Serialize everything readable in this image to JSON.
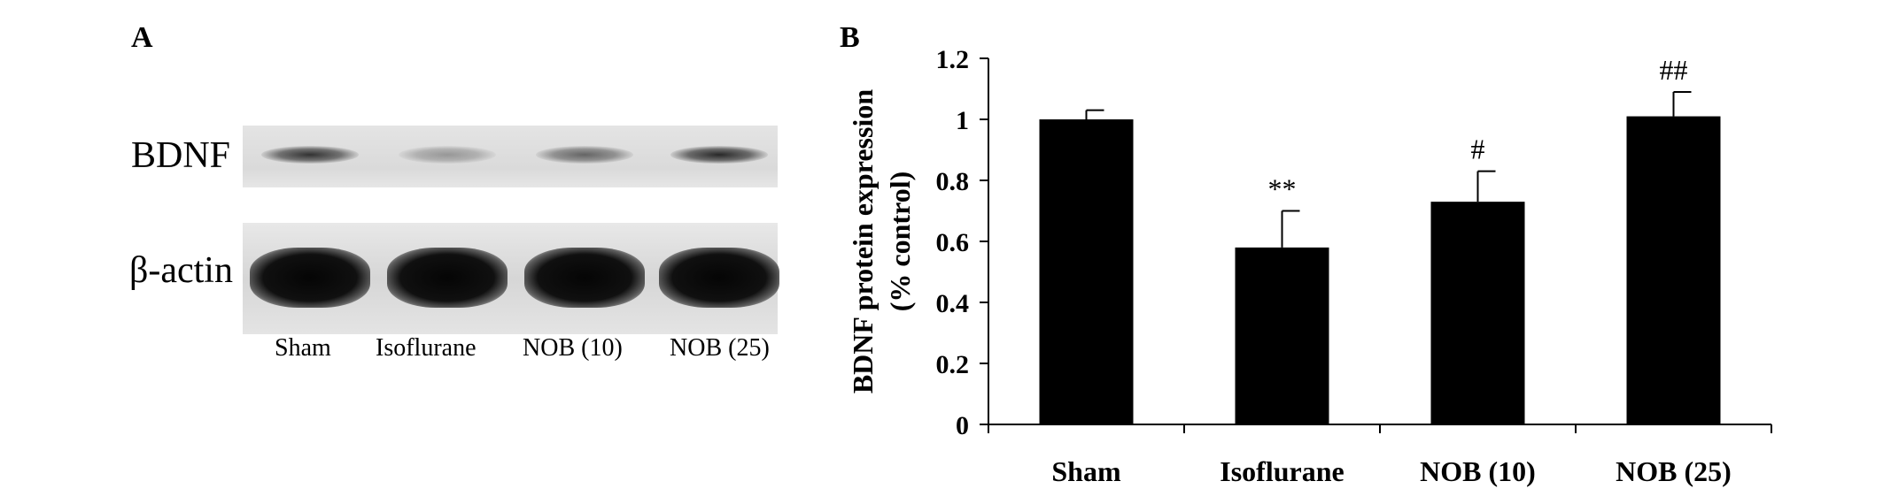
{
  "panel_a": {
    "label": "A",
    "row_labels": [
      "BDNF",
      "β-actin"
    ],
    "lanes": [
      "Sham",
      "Isoflurane",
      "NOB (10)",
      "NOB (25)"
    ],
    "bdnf_band_intensity": [
      0.85,
      0.35,
      0.6,
      0.9
    ],
    "actin_band_intensity": [
      1.0,
      1.0,
      1.0,
      1.0
    ]
  },
  "panel_b": {
    "label": "B"
  },
  "chart_data": {
    "type": "bar",
    "categories": [
      "Sham",
      "Isoflurane",
      "NOB (10)",
      "NOB (25)"
    ],
    "series": [
      {
        "values": [
          1.0,
          0.58,
          0.73,
          1.01
        ],
        "errors": [
          0.03,
          0.12,
          0.1,
          0.08
        ]
      }
    ],
    "annotations": [
      "",
      "**",
      "#",
      "##"
    ],
    "ylabel_line1": "BDNF protein expression",
    "ylabel_line2": "(% control)",
    "xlabel": "",
    "ylim": [
      0,
      1.2
    ],
    "yticks": [
      0,
      0.2,
      0.4,
      0.6,
      0.8,
      1,
      1.2
    ],
    "ytick_labels": [
      "0",
      "0.2",
      "0.4",
      "0.6",
      "0.8",
      "1",
      "1.2"
    ],
    "bar_color": "#000000",
    "grid": false,
    "legend": "none"
  }
}
